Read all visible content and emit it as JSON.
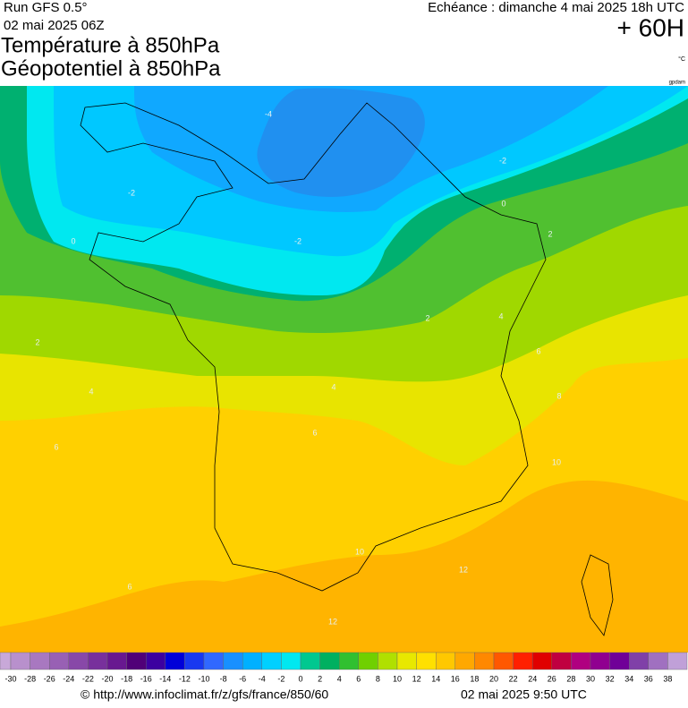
{
  "header": {
    "run": "Run GFS 0.5°",
    "run_date": "02 mai 2025 06Z",
    "valid": "Echéance : dimanche 4 mai 2025 18h UTC",
    "lead": "+ 60H",
    "title_1": "Température à 850hPa",
    "title_2": "Géopotentiel à 850hPa",
    "unit": "°C",
    "geo_unit": "gpdam"
  },
  "map": {
    "contour_labels": [
      -4,
      -2,
      -2,
      0,
      0,
      -2,
      2,
      2,
      2,
      4,
      4,
      4,
      6,
      8,
      6,
      6,
      10,
      10,
      12,
      12,
      6
    ]
  },
  "colorbar": {
    "ticks": [
      -30,
      -28,
      -26,
      -24,
      -22,
      -20,
      -18,
      -16,
      -14,
      -12,
      -10,
      -8,
      -6,
      -4,
      -2,
      0,
      2,
      4,
      6,
      8,
      10,
      12,
      14,
      16,
      18,
      20,
      22,
      24,
      26,
      28,
      30,
      32,
      34,
      36,
      38
    ],
    "colors": [
      "#c8a8d8",
      "#b890cc",
      "#a878c0",
      "#9860b4",
      "#8848a8",
      "#78309c",
      "#681890",
      "#500078",
      "#3c00a0",
      "#0000d8",
      "#1838f0",
      "#3068ff",
      "#1890ff",
      "#00b0ff",
      "#00d0ff",
      "#00e8f0",
      "#00c890",
      "#00b060",
      "#30c030",
      "#70d000",
      "#b0e000",
      "#e8e800",
      "#ffe000",
      "#ffc800",
      "#ffa800",
      "#ff8800",
      "#ff5800",
      "#ff2000",
      "#e00000",
      "#c00040",
      "#b00080",
      "#900090",
      "#700098",
      "#8040a8",
      "#a070c0",
      "#c0a0d8"
    ]
  },
  "footer": {
    "credit": "© http://www.infoclimat.fr/z/gfs/france/850/60",
    "issued": "02 mai 2025  9:50 UTC"
  }
}
